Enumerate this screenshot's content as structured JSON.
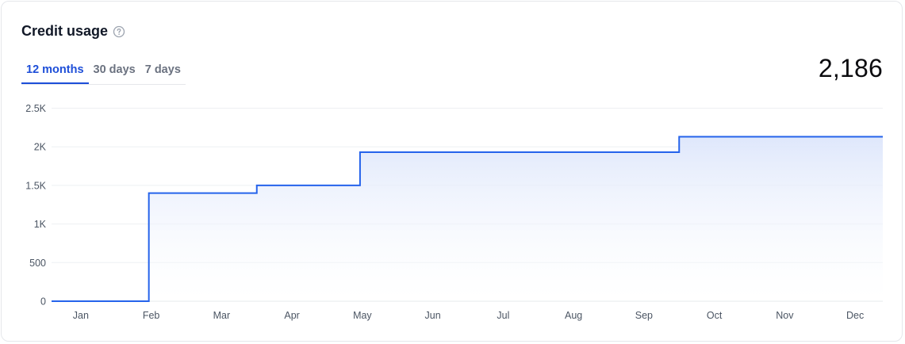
{
  "header": {
    "title": "Credit usage",
    "help_icon": "question-circle-icon",
    "total": "2,186"
  },
  "tabs": [
    {
      "label": "12 months",
      "active": true
    },
    {
      "label": "30 days",
      "active": false
    },
    {
      "label": "7 days",
      "active": false
    }
  ],
  "colors": {
    "accent": "#1d4ed8",
    "line": "#2563eb",
    "fill_top": "#dfe7fb",
    "grid": "#eef0f3"
  },
  "chart_data": {
    "type": "area",
    "step": true,
    "categories": [
      "Jan",
      "Feb",
      "Mar",
      "Apr",
      "May",
      "Jun",
      "Jul",
      "Aug",
      "Sep",
      "Oct",
      "Nov",
      "Dec"
    ],
    "y_ticks": [
      "0",
      "500",
      "1K",
      "1.5K",
      "2K",
      "2.5K"
    ],
    "ylim": [
      0,
      2500
    ],
    "grid": true,
    "series": [
      {
        "points": [
          {
            "x": "Jan 1",
            "y": 0
          },
          {
            "x": "Feb 15",
            "y": 1400
          },
          {
            "x": "Apr 1",
            "y": 1500
          },
          {
            "x": "May 15",
            "y": 1930
          },
          {
            "x": "Oct 1",
            "y": 2130
          }
        ]
      }
    ]
  }
}
